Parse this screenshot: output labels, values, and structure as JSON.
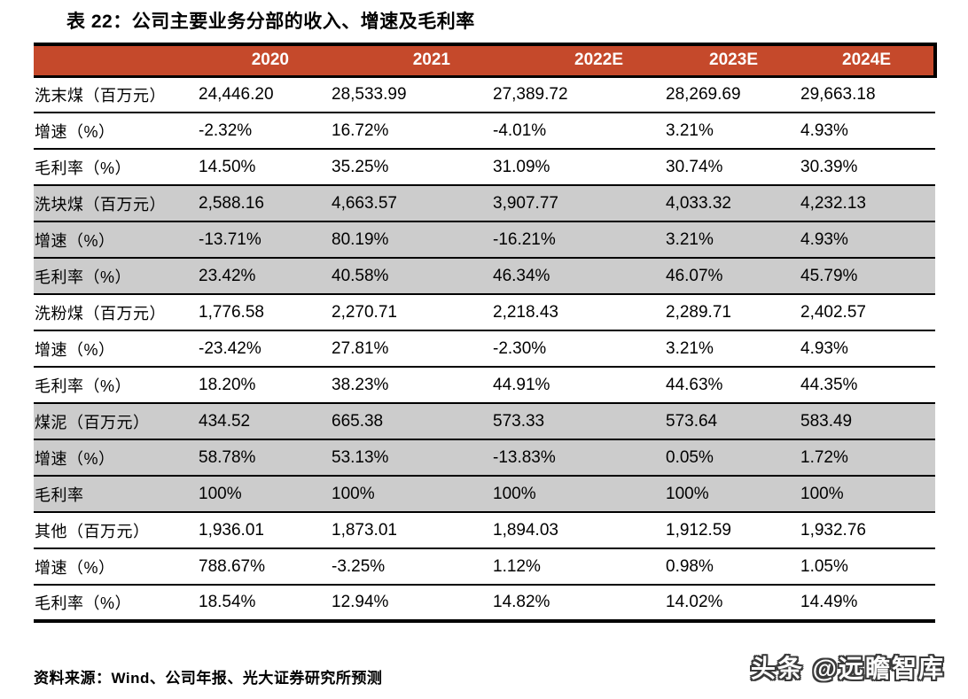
{
  "title": "表 22：公司主要业务分部的收入、增速及毛利率",
  "source_note": "资料来源：Wind、公司年报、光大证券研究所预测",
  "watermark": "头条 @远瞻智库",
  "colors": {
    "header_bg": "#C5492B",
    "header_text": "#FFFFFF",
    "shaded_row_bg": "#CCCCCC",
    "border": "#000000"
  },
  "table": {
    "columns": [
      "",
      "2020",
      "2021",
      "2022E",
      "2023E",
      "2024E"
    ],
    "rows": [
      {
        "label": "洗末煤（百万元）",
        "shaded": false,
        "values": [
          "24,446.20",
          "28,533.99",
          "27,389.72",
          "28,269.69",
          "29,663.18"
        ]
      },
      {
        "label": "增速（%）",
        "shaded": false,
        "values": [
          "-2.32%",
          "16.72%",
          "-4.01%",
          "3.21%",
          "4.93%"
        ]
      },
      {
        "label": "毛利率（%）",
        "shaded": false,
        "values": [
          "14.50%",
          "35.25%",
          "31.09%",
          "30.74%",
          "30.39%"
        ]
      },
      {
        "label": "洗块煤（百万元）",
        "shaded": true,
        "values": [
          "2,588.16",
          "4,663.57",
          "3,907.77",
          "4,033.32",
          "4,232.13"
        ]
      },
      {
        "label": "增速（%）",
        "shaded": true,
        "values": [
          "-13.71%",
          "80.19%",
          "-16.21%",
          "3.21%",
          "4.93%"
        ]
      },
      {
        "label": "毛利率（%）",
        "shaded": true,
        "values": [
          "23.42%",
          "40.58%",
          "46.34%",
          "46.07%",
          "45.79%"
        ]
      },
      {
        "label": "洗粉煤（百万元）",
        "shaded": false,
        "values": [
          "1,776.58",
          "2,270.71",
          "2,218.43",
          "2,289.71",
          "2,402.57"
        ]
      },
      {
        "label": "增速（%）",
        "shaded": false,
        "values": [
          "-23.42%",
          "27.81%",
          "-2.30%",
          "3.21%",
          "4.93%"
        ]
      },
      {
        "label": "毛利率（%）",
        "shaded": false,
        "values": [
          "18.20%",
          "38.23%",
          "44.91%",
          "44.63%",
          "44.35%"
        ]
      },
      {
        "label": "煤泥（百万元）",
        "shaded": true,
        "values": [
          "434.52",
          "665.38",
          "573.33",
          "573.64",
          "583.49"
        ]
      },
      {
        "label": "增速（%）",
        "shaded": true,
        "values": [
          "58.78%",
          "53.13%",
          "-13.83%",
          "0.05%",
          "1.72%"
        ]
      },
      {
        "label": "毛利率",
        "shaded": true,
        "values": [
          "100%",
          "100%",
          "100%",
          "100%",
          "100%"
        ]
      },
      {
        "label": "其他（百万元）",
        "shaded": false,
        "values": [
          "1,936.01",
          "1,873.01",
          "1,894.03",
          "1,912.59",
          "1,932.76"
        ]
      },
      {
        "label": "增速（%）",
        "shaded": false,
        "values": [
          "788.67%",
          "-3.25%",
          "1.12%",
          "0.98%",
          "1.05%"
        ]
      },
      {
        "label": "毛利率（%）",
        "shaded": false,
        "values": [
          "18.54%",
          "12.94%",
          "14.82%",
          "14.02%",
          "14.49%"
        ]
      }
    ]
  }
}
